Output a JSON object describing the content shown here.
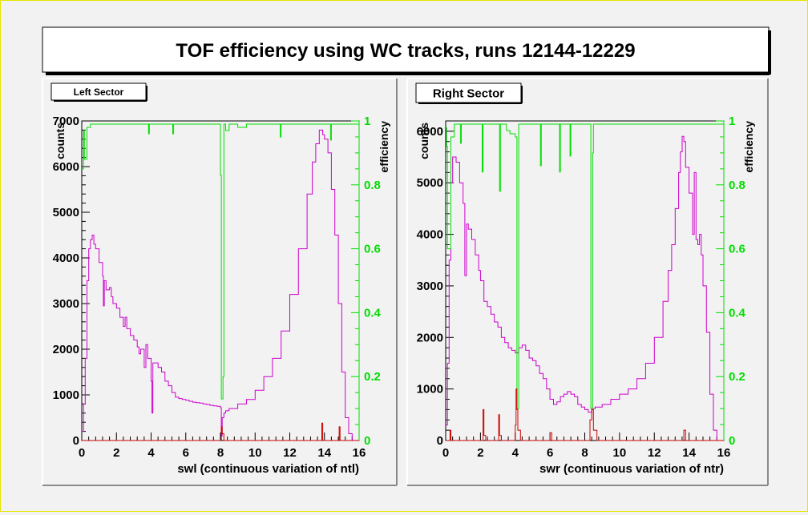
{
  "title": "TOF efficiency using WC tracks, runs 12144-12229",
  "colors": {
    "counts_line": "#cc00cc",
    "efficiency_line": "#00dd00",
    "red_line": "#cc0000",
    "efficiency_axis": "#00dd00"
  },
  "chart_data": [
    {
      "type": "line",
      "label": "Left Sector",
      "xlabel": "swl (continuous variation of ntl)",
      "ylabel": "counts",
      "y2label": "efficiency",
      "xlim": [
        0,
        16
      ],
      "ylim": [
        0,
        7000
      ],
      "y2lim": [
        0,
        1
      ],
      "xticks": [
        0,
        2,
        4,
        6,
        8,
        10,
        12,
        14,
        16
      ],
      "yticks": [
        0,
        1000,
        2000,
        3000,
        4000,
        5000,
        6000,
        7000
      ],
      "y2ticks": [
        0,
        0.2,
        0.4,
        0.6,
        0.8,
        1
      ],
      "series": [
        {
          "role": "counts",
          "x": [
            0,
            0.1,
            0.2,
            0.3,
            0.4,
            0.5,
            0.6,
            0.7,
            0.8,
            1.0,
            1.2,
            1.25,
            1.3,
            1.4,
            1.6,
            1.7,
            1.8,
            2.0,
            2.2,
            2.4,
            2.5,
            2.6,
            2.8,
            3.0,
            3.2,
            3.3,
            3.4,
            3.6,
            3.7,
            3.8,
            4.0,
            4.05,
            4.1,
            4.2,
            4.4,
            4.6,
            4.8,
            5.0,
            5.2,
            5.4,
            5.6,
            5.8,
            6.0,
            6.2,
            6.4,
            6.6,
            6.8,
            7.0,
            7.2,
            7.4,
            7.6,
            7.8,
            8.0,
            8.05,
            8.1,
            8.2,
            8.3,
            8.5,
            9.0,
            9.5,
            10.0,
            10.5,
            11.0,
            11.5,
            12.0,
            12.5,
            13.0,
            13.3,
            13.5,
            13.7,
            13.9,
            14.0,
            14.2,
            14.4,
            14.6,
            14.8,
            15.0,
            15.2,
            15.4,
            15.6,
            15.8
          ],
          "y": [
            200,
            800,
            1800,
            3500,
            4200,
            4400,
            4500,
            4300,
            4200,
            3900,
            3600,
            2950,
            3500,
            3300,
            3350,
            3150,
            3000,
            2900,
            2700,
            2500,
            2700,
            2450,
            2300,
            2200,
            2050,
            1900,
            2000,
            1600,
            2100,
            1800,
            1300,
            600,
            1700,
            1700,
            1600,
            1500,
            1300,
            1200,
            1050,
            950,
            920,
            900,
            880,
            860,
            840,
            830,
            820,
            800,
            790,
            770,
            760,
            750,
            720,
            100,
            500,
            600,
            650,
            700,
            800,
            900,
            1100,
            1400,
            1800,
            2400,
            3200,
            4200,
            5400,
            6100,
            6500,
            6800,
            6700,
            6600,
            6300,
            5500,
            4500,
            3000,
            1500,
            500,
            150,
            0,
            0
          ]
        },
        {
          "role": "efficiency",
          "x": [
            0,
            0.1,
            0.15,
            0.3,
            0.5,
            1.0,
            2.0,
            3.0,
            3.8,
            3.85,
            3.9,
            4.5,
            5.2,
            5.25,
            5.3,
            6.0,
            7.0,
            7.5,
            7.95,
            8.0,
            8.05,
            8.15,
            8.2,
            8.3,
            8.5,
            9.0,
            9.5,
            10.0,
            10.5,
            11.0,
            11.4,
            11.45,
            11.5,
            12.0,
            13.0,
            14.0,
            14.3,
            14.35,
            14.4,
            15.0,
            15.5,
            15.9,
            16.0
          ],
          "y": [
            0.85,
            0.97,
            0.88,
            0.98,
            0.99,
            0.99,
            0.99,
            0.99,
            0.99,
            0.96,
            0.99,
            0.99,
            0.99,
            0.96,
            0.99,
            0.99,
            0.99,
            0.99,
            0.99,
            0.83,
            0.13,
            0.2,
            0.99,
            0.97,
            0.99,
            0.98,
            0.99,
            0.99,
            0.99,
            0.99,
            0.99,
            0.95,
            0.99,
            0.99,
            0.99,
            0.99,
            0.99,
            0.94,
            0.99,
            0.99,
            0.99,
            0.99,
            0.99
          ]
        },
        {
          "role": "red",
          "x": [
            0,
            8.0,
            8.05,
            8.1,
            8.2,
            9.0,
            13.8,
            13.85,
            13.9,
            14.8,
            14.85,
            14.9,
            16.0
          ],
          "y": [
            0,
            0,
            300,
            150,
            0,
            0,
            0,
            380,
            0,
            0,
            300,
            0,
            0
          ]
        }
      ]
    },
    {
      "type": "line",
      "label": "Right Sector",
      "xlabel": "swr (continuous variation of ntr)",
      "ylabel": "counts",
      "y2label": "efficiency",
      "xlim": [
        0,
        16
      ],
      "ylim": [
        0,
        6200
      ],
      "y2lim": [
        0,
        1
      ],
      "xticks": [
        0,
        2,
        4,
        6,
        8,
        10,
        12,
        14,
        16
      ],
      "yticks": [
        0,
        1000,
        2000,
        3000,
        4000,
        5000,
        6000
      ],
      "y2ticks": [
        0,
        0.2,
        0.4,
        0.6,
        0.8,
        1
      ],
      "series": [
        {
          "role": "counts",
          "x": [
            0,
            0.1,
            0.2,
            0.3,
            0.4,
            0.6,
            0.8,
            1.0,
            1.1,
            1.2,
            1.3,
            1.5,
            1.7,
            1.9,
            2.0,
            2.2,
            2.4,
            2.6,
            2.8,
            3.0,
            3.2,
            3.4,
            3.6,
            3.8,
            4.0,
            4.2,
            4.4,
            4.6,
            4.8,
            5.0,
            5.2,
            5.4,
            5.6,
            5.8,
            6.0,
            6.2,
            6.4,
            6.6,
            6.8,
            7.0,
            7.2,
            7.4,
            7.6,
            7.8,
            8.0,
            8.2,
            8.4,
            8.6,
            9.0,
            9.5,
            10.0,
            10.5,
            11.0,
            11.5,
            12.0,
            12.5,
            12.8,
            13.0,
            13.2,
            13.4,
            13.5,
            13.6,
            13.7,
            13.8,
            14.0,
            14.2,
            14.3,
            14.4,
            14.5,
            14.6,
            14.7,
            14.8,
            15.0,
            15.2,
            15.4,
            15.6,
            15.8
          ],
          "y": [
            300,
            1500,
            3500,
            5000,
            5500,
            5400,
            5000,
            4600,
            3200,
            4200,
            4100,
            3900,
            3600,
            3300,
            3100,
            2700,
            2600,
            2450,
            2300,
            2200,
            2000,
            1900,
            1800,
            1750,
            1700,
            1800,
            1850,
            1750,
            1600,
            1550,
            1450,
            1300,
            1200,
            1000,
            800,
            700,
            750,
            850,
            900,
            950,
            900,
            850,
            700,
            650,
            600,
            550,
            620,
            650,
            700,
            800,
            900,
            1000,
            1200,
            1500,
            2000,
            2700,
            3300,
            3800,
            4500,
            5200,
            5600,
            5900,
            5800,
            5300,
            4800,
            4000,
            5200,
            3900,
            3800,
            4000,
            3600,
            3000,
            2100,
            900,
            200,
            0,
            0
          ]
        },
        {
          "role": "efficiency",
          "x": [
            0,
            0.05,
            0.1,
            0.3,
            0.5,
            0.8,
            0.85,
            0.9,
            1.0,
            1.5,
            2.05,
            2.1,
            2.15,
            3.0,
            3.1,
            3.15,
            3.5,
            3.7,
            4.0,
            4.1,
            4.2,
            4.3,
            4.5,
            5.0,
            5.4,
            5.45,
            5.5,
            6.0,
            6.5,
            6.55,
            6.6,
            7.1,
            7.15,
            7.2,
            7.8,
            8.2,
            8.35,
            8.4,
            8.45,
            8.5,
            8.6,
            9.0,
            10.0,
            11.0,
            12.0,
            13.0,
            14.0,
            15.0,
            15.8,
            15.9,
            16.0
          ],
          "y": [
            0.98,
            0.92,
            0.6,
            0.95,
            0.99,
            0.99,
            0.93,
            0.99,
            0.99,
            0.99,
            0.99,
            0.84,
            0.99,
            0.99,
            0.78,
            0.99,
            0.97,
            0.96,
            0.95,
            0.1,
            0.99,
            0.99,
            0.99,
            0.99,
            0.99,
            0.86,
            0.99,
            0.99,
            0.99,
            0.84,
            0.99,
            0.99,
            0.89,
            0.99,
            0.99,
            0.99,
            0.1,
            0.1,
            0.9,
            0.99,
            0.99,
            0.99,
            0.99,
            0.99,
            0.99,
            0.99,
            0.99,
            0.99,
            0.99,
            0.99,
            0.99
          ]
        },
        {
          "role": "red",
          "x": [
            0,
            0.2,
            0.25,
            0.3,
            0.4,
            2.1,
            2.15,
            2.2,
            2.3,
            3.0,
            3.05,
            3.1,
            3.2,
            3.9,
            4.0,
            4.05,
            4.1,
            4.15,
            4.3,
            4.5,
            5.9,
            6.0,
            6.1,
            8.2,
            8.3,
            8.4,
            8.5,
            8.7,
            13.6,
            13.7,
            13.8,
            16.0
          ],
          "y": [
            0,
            0,
            200,
            0,
            0,
            0,
            600,
            100,
            0,
            0,
            500,
            100,
            0,
            0,
            300,
            1000,
            600,
            200,
            0,
            0,
            0,
            150,
            0,
            0,
            400,
            600,
            200,
            0,
            0,
            200,
            0,
            0
          ]
        }
      ]
    }
  ]
}
